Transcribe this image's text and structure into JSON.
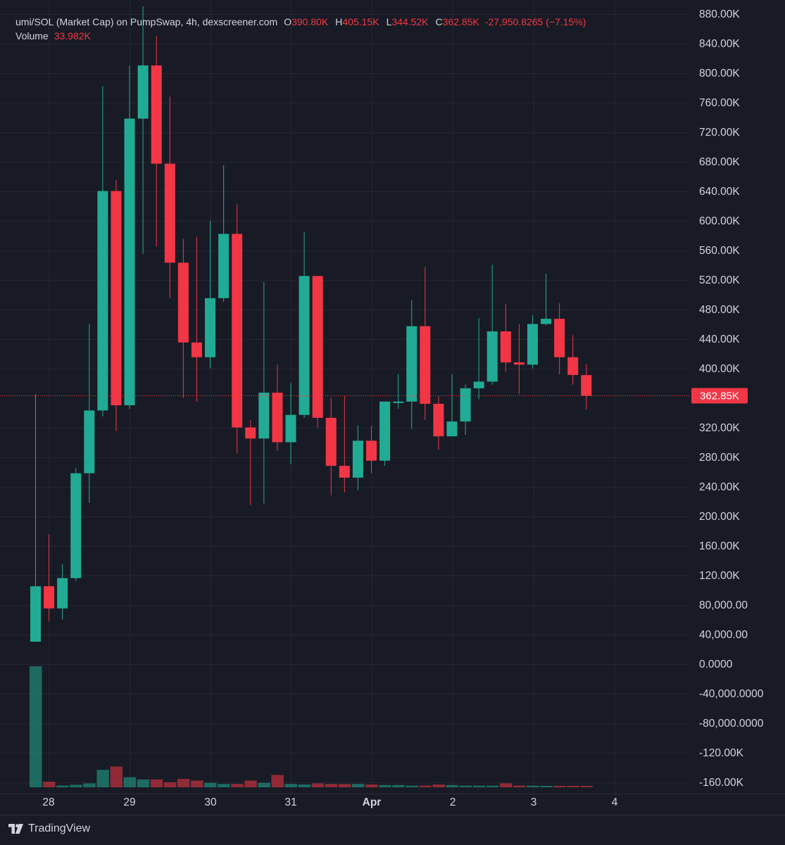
{
  "legend": {
    "title": "umi/SOL (Market Cap) on PumpSwap, 4h, dexscreener.com",
    "open_label": "O",
    "open": "390.80K",
    "high_label": "H",
    "high": "405.15K",
    "low_label": "L",
    "low": "344.52K",
    "close_label": "C",
    "close": "362.85K",
    "change": "-27,950.8265 (−7.15%)",
    "volume_label": "Volume",
    "volume": "33.982K"
  },
  "brand": {
    "name": "TradingView",
    "icon": "tradingview-logo-icon"
  },
  "colors": {
    "up": "#22ab94",
    "down": "#f23645",
    "background": "#181b25",
    "grid": "#232632",
    "text": "#d1d4dc"
  },
  "chart_data": {
    "type": "candlestick",
    "interval": "4h",
    "y_axis_labels": [
      "880.00K",
      "840.00K",
      "800.00K",
      "760.00K",
      "720.00K",
      "680.00K",
      "640.00K",
      "600.00K",
      "560.00K",
      "520.00K",
      "480.00K",
      "440.00K",
      "400.00K",
      "362.85K",
      "320.00K",
      "280.00K",
      "240.00K",
      "200.00K",
      "160.00K",
      "120.00K",
      "80,000.00",
      "40,000.00",
      "0.0000",
      "-40,000.0000",
      "-80,000.0000",
      "-120.00K",
      "-160.00K"
    ],
    "y_axis_values": [
      880000,
      840000,
      800000,
      760000,
      720000,
      680000,
      640000,
      600000,
      560000,
      520000,
      480000,
      440000,
      400000,
      null,
      320000,
      280000,
      240000,
      200000,
      160000,
      120000,
      80000,
      40000,
      0,
      -40000,
      -80000,
      -120000,
      -160000
    ],
    "ylim": [
      -160000,
      880000
    ],
    "last_price": 362850,
    "last_price_label": "362.85K",
    "x_tick_labels": [
      "28",
      "29",
      "30",
      "31",
      "Apr",
      "2",
      "3",
      "4"
    ],
    "candles": [
      {
        "o": 30000,
        "h": 365000,
        "l": 30000,
        "c": 105000
      },
      {
        "o": 105000,
        "h": 175000,
        "l": 58000,
        "c": 75000
      },
      {
        "o": 75000,
        "h": 135000,
        "l": 60000,
        "c": 116000
      },
      {
        "o": 116000,
        "h": 265000,
        "l": 112000,
        "c": 258000
      },
      {
        "o": 258000,
        "h": 460000,
        "l": 218000,
        "c": 343000
      },
      {
        "o": 343000,
        "h": 782000,
        "l": 335000,
        "c": 640000
      },
      {
        "o": 640000,
        "h": 655000,
        "l": 315000,
        "c": 350000
      },
      {
        "o": 350000,
        "h": 810000,
        "l": 345000,
        "c": 738000
      },
      {
        "o": 738000,
        "h": 890000,
        "l": 555000,
        "c": 810000
      },
      {
        "o": 810000,
        "h": 850000,
        "l": 565000,
        "c": 677000
      },
      {
        "o": 677000,
        "h": 768000,
        "l": 495000,
        "c": 543000
      },
      {
        "o": 543000,
        "h": 575000,
        "l": 360000,
        "c": 435000
      },
      {
        "o": 435000,
        "h": 578000,
        "l": 355000,
        "c": 415000
      },
      {
        "o": 415000,
        "h": 600000,
        "l": 400000,
        "c": 495000
      },
      {
        "o": 495000,
        "h": 675000,
        "l": 490000,
        "c": 582000
      },
      {
        "o": 582000,
        "h": 622000,
        "l": 285000,
        "c": 320000
      },
      {
        "o": 320000,
        "h": 330000,
        "l": 215000,
        "c": 305000
      },
      {
        "o": 305000,
        "h": 517000,
        "l": 217000,
        "c": 367000
      },
      {
        "o": 367000,
        "h": 405000,
        "l": 288000,
        "c": 300000
      },
      {
        "o": 300000,
        "h": 380000,
        "l": 270000,
        "c": 337000
      },
      {
        "o": 337000,
        "h": 585000,
        "l": 333000,
        "c": 525000
      },
      {
        "o": 525000,
        "h": 525000,
        "l": 320000,
        "c": 333000
      },
      {
        "o": 333000,
        "h": 360000,
        "l": 228000,
        "c": 268000
      },
      {
        "o": 268000,
        "h": 362000,
        "l": 232000,
        "c": 252000
      },
      {
        "o": 252000,
        "h": 323000,
        "l": 235000,
        "c": 302000
      },
      {
        "o": 302000,
        "h": 322000,
        "l": 258000,
        "c": 275000
      },
      {
        "o": 275000,
        "h": 355000,
        "l": 268000,
        "c": 355000
      },
      {
        "o": 355000,
        "h": 392000,
        "l": 345000,
        "c": 355000
      },
      {
        "o": 355000,
        "h": 492000,
        "l": 318000,
        "c": 457000
      },
      {
        "o": 457000,
        "h": 537000,
        "l": 330000,
        "c": 352000
      },
      {
        "o": 352000,
        "h": 362000,
        "l": 290000,
        "c": 308000
      },
      {
        "o": 308000,
        "h": 392000,
        "l": 308000,
        "c": 328000
      },
      {
        "o": 328000,
        "h": 378000,
        "l": 310000,
        "c": 373000
      },
      {
        "o": 373000,
        "h": 468000,
        "l": 358000,
        "c": 382000
      },
      {
        "o": 382000,
        "h": 540000,
        "l": 378000,
        "c": 450000
      },
      {
        "o": 450000,
        "h": 487000,
        "l": 395000,
        "c": 408000
      },
      {
        "o": 408000,
        "h": 460000,
        "l": 365000,
        "c": 405000
      },
      {
        "o": 405000,
        "h": 472000,
        "l": 400000,
        "c": 460000
      },
      {
        "o": 460000,
        "h": 528000,
        "l": 458000,
        "c": 467000
      },
      {
        "o": 467000,
        "h": 488000,
        "l": 392000,
        "c": 415000
      },
      {
        "o": 415000,
        "h": 445000,
        "l": 378000,
        "c": 391000
      },
      {
        "o": 390800,
        "h": 405150,
        "l": 344520,
        "c": 362850
      }
    ],
    "volume": [
      2150,
      100,
      32,
      45,
      70,
      310,
      370,
      180,
      140,
      140,
      90,
      150,
      120,
      80,
      60,
      60,
      120,
      80,
      220,
      60,
      50,
      70,
      60,
      60,
      60,
      50,
      40,
      40,
      30,
      30,
      50,
      40,
      30,
      30,
      30,
      70,
      30,
      30,
      20,
      20,
      20,
      25
    ]
  }
}
